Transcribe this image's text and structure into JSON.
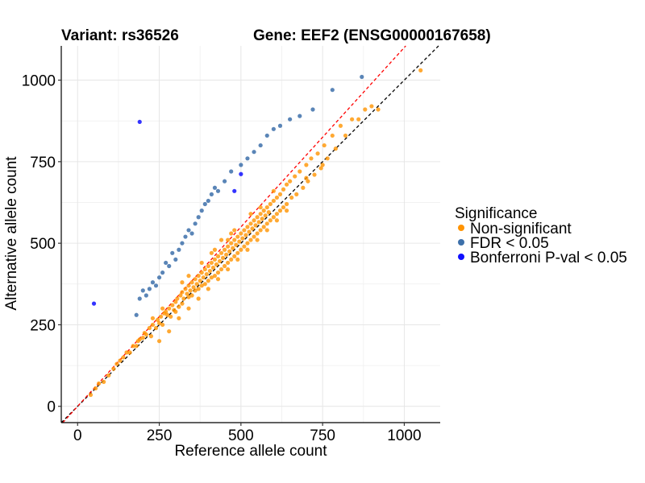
{
  "chart_data": {
    "type": "scatter",
    "title_left": "Variant: rs36526",
    "title_right": "Gene: EEF2 (ENSG00000167658)",
    "xlabel": "Reference allele count",
    "ylabel": "Alternative allele count",
    "xlim": [
      -50,
      1110
    ],
    "ylim": [
      -50,
      1105
    ],
    "x_ticks": [
      0,
      250,
      500,
      750,
      1000
    ],
    "y_ticks": [
      0,
      250,
      500,
      750,
      1000
    ],
    "x_tick_labels": [
      "0",
      "250",
      "500",
      "750",
      "1000"
    ],
    "y_tick_labels": [
      "0",
      "250",
      "500",
      "750",
      "1000"
    ],
    "grid": true,
    "legend_position": "right",
    "legend": {
      "title": "Significance",
      "items": [
        {
          "label": "Non-significant",
          "color": "#ff9300"
        },
        {
          "label": "FDR < 0.05",
          "color": "#3d70aa"
        },
        {
          "label": "Bonferroni P-val < 0.05",
          "color": "#1010ff"
        }
      ]
    },
    "reference_lines": [
      {
        "name": "identity",
        "slope": 1.0,
        "intercept": 0,
        "color": "#000000",
        "style": "dashed"
      },
      {
        "name": "fit",
        "slope": 1.1,
        "intercept": 0,
        "color": "#ff0000",
        "style": "dashed"
      }
    ],
    "series": [
      {
        "name": "Non-significant",
        "color": "#ff9300",
        "points": [
          [
            40,
            35
          ],
          [
            55,
            55
          ],
          [
            65,
            70
          ],
          [
            80,
            75
          ],
          [
            95,
            95
          ],
          [
            110,
            115
          ],
          [
            120,
            130
          ],
          [
            130,
            140
          ],
          [
            140,
            150
          ],
          [
            150,
            165
          ],
          [
            160,
            165
          ],
          [
            170,
            185
          ],
          [
            180,
            185
          ],
          [
            185,
            200
          ],
          [
            190,
            205
          ],
          [
            200,
            210
          ],
          [
            205,
            225
          ],
          [
            210,
            220
          ],
          [
            220,
            240
          ],
          [
            225,
            215
          ],
          [
            230,
            250
          ],
          [
            240,
            240
          ],
          [
            245,
            265
          ],
          [
            250,
            255
          ],
          [
            255,
            275
          ],
          [
            260,
            250
          ],
          [
            265,
            285
          ],
          [
            270,
            290
          ],
          [
            275,
            280
          ],
          [
            280,
            300
          ],
          [
            285,
            275
          ],
          [
            290,
            310
          ],
          [
            295,
            295
          ],
          [
            300,
            320
          ],
          [
            300,
            290
          ],
          [
            305,
            330
          ],
          [
            310,
            305
          ],
          [
            315,
            340
          ],
          [
            320,
            315
          ],
          [
            320,
            350
          ],
          [
            325,
            330
          ],
          [
            330,
            360
          ],
          [
            335,
            345
          ],
          [
            340,
            335
          ],
          [
            340,
            370
          ],
          [
            345,
            355
          ],
          [
            350,
            380
          ],
          [
            350,
            340
          ],
          [
            355,
            365
          ],
          [
            360,
            390
          ],
          [
            360,
            355
          ],
          [
            365,
            375
          ],
          [
            370,
            400
          ],
          [
            370,
            360
          ],
          [
            375,
            385
          ],
          [
            380,
            410
          ],
          [
            380,
            370
          ],
          [
            385,
            395
          ],
          [
            390,
            420
          ],
          [
            390,
            375
          ],
          [
            395,
            405
          ],
          [
            400,
            430
          ],
          [
            400,
            385
          ],
          [
            405,
            415
          ],
          [
            410,
            440
          ],
          [
            410,
            395
          ],
          [
            415,
            425
          ],
          [
            420,
            450
          ],
          [
            420,
            400
          ],
          [
            425,
            435
          ],
          [
            430,
            460
          ],
          [
            430,
            410
          ],
          [
            435,
            445
          ],
          [
            440,
            470
          ],
          [
            440,
            420
          ],
          [
            445,
            455
          ],
          [
            450,
            480
          ],
          [
            450,
            430
          ],
          [
            455,
            465
          ],
          [
            460,
            490
          ],
          [
            460,
            440
          ],
          [
            465,
            475
          ],
          [
            470,
            500
          ],
          [
            470,
            450
          ],
          [
            475,
            485
          ],
          [
            480,
            510
          ],
          [
            480,
            460
          ],
          [
            485,
            495
          ],
          [
            490,
            520
          ],
          [
            490,
            470
          ],
          [
            495,
            505
          ],
          [
            500,
            530
          ],
          [
            500,
            480
          ],
          [
            505,
            515
          ],
          [
            510,
            540
          ],
          [
            510,
            490
          ],
          [
            515,
            525
          ],
          [
            520,
            550
          ],
          [
            520,
            500
          ],
          [
            525,
            535
          ],
          [
            530,
            560
          ],
          [
            530,
            510
          ],
          [
            535,
            545
          ],
          [
            540,
            570
          ],
          [
            540,
            520
          ],
          [
            545,
            555
          ],
          [
            550,
            580
          ],
          [
            550,
            530
          ],
          [
            555,
            565
          ],
          [
            560,
            590
          ],
          [
            560,
            540
          ],
          [
            565,
            575
          ],
          [
            570,
            600
          ],
          [
            570,
            550
          ],
          [
            575,
            585
          ],
          [
            580,
            610
          ],
          [
            580,
            560
          ],
          [
            585,
            595
          ],
          [
            590,
            620
          ],
          [
            590,
            570
          ],
          [
            600,
            630
          ],
          [
            600,
            580
          ],
          [
            610,
            640
          ],
          [
            610,
            590
          ],
          [
            620,
            650
          ],
          [
            620,
            600
          ],
          [
            630,
            665
          ],
          [
            630,
            610
          ],
          [
            640,
            680
          ],
          [
            640,
            620
          ],
          [
            650,
            690
          ],
          [
            655,
            640
          ],
          [
            665,
            705
          ],
          [
            670,
            650
          ],
          [
            680,
            720
          ],
          [
            690,
            670
          ],
          [
            700,
            740
          ],
          [
            705,
            690
          ],
          [
            715,
            760
          ],
          [
            725,
            710
          ],
          [
            735,
            775
          ],
          [
            745,
            730
          ],
          [
            755,
            800
          ],
          [
            765,
            760
          ],
          [
            780,
            830
          ],
          [
            790,
            790
          ],
          [
            805,
            860
          ],
          [
            820,
            830
          ],
          [
            840,
            880
          ],
          [
            860,
            880
          ],
          [
            880,
            910
          ],
          [
            900,
            920
          ],
          [
            920,
            910
          ],
          [
            1050,
            1030
          ],
          [
            250,
            200
          ],
          [
            280,
            230
          ],
          [
            310,
            270
          ],
          [
            340,
            300
          ],
          [
            370,
            330
          ],
          [
            400,
            360
          ],
          [
            430,
            390
          ],
          [
            460,
            420
          ],
          [
            490,
            450
          ],
          [
            520,
            480
          ],
          [
            550,
            510
          ],
          [
            580,
            540
          ],
          [
            610,
            570
          ],
          [
            640,
            600
          ],
          [
            230,
            270
          ],
          [
            260,
            300
          ],
          [
            320,
            380
          ],
          [
            380,
            440
          ],
          [
            440,
            510
          ],
          [
            480,
            540
          ],
          [
            340,
            400
          ],
          [
            410,
            470
          ],
          [
            470,
            530
          ],
          [
            530,
            590
          ],
          [
            560,
            610
          ],
          [
            600,
            660
          ],
          [
            700,
            700
          ],
          [
            750,
            740
          ],
          [
            420,
            480
          ],
          [
            460,
            510
          ]
        ]
      },
      {
        "name": "FDR < 0.05",
        "color": "#3d70aa",
        "points": [
          [
            200,
            355
          ],
          [
            210,
            340
          ],
          [
            220,
            360
          ],
          [
            230,
            380
          ],
          [
            240,
            370
          ],
          [
            250,
            395
          ],
          [
            260,
            410
          ],
          [
            270,
            440
          ],
          [
            280,
            430
          ],
          [
            290,
            470
          ],
          [
            300,
            450
          ],
          [
            310,
            480
          ],
          [
            320,
            500
          ],
          [
            330,
            520
          ],
          [
            340,
            540
          ],
          [
            350,
            530
          ],
          [
            360,
            560
          ],
          [
            370,
            580
          ],
          [
            380,
            600
          ],
          [
            390,
            620
          ],
          [
            400,
            630
          ],
          [
            410,
            650
          ],
          [
            420,
            670
          ],
          [
            430,
            660
          ],
          [
            450,
            690
          ],
          [
            470,
            720
          ],
          [
            500,
            740
          ],
          [
            520,
            760
          ],
          [
            540,
            780
          ],
          [
            560,
            800
          ],
          [
            580,
            830
          ],
          [
            600,
            850
          ],
          [
            620,
            860
          ],
          [
            650,
            880
          ],
          [
            680,
            890
          ],
          [
            720,
            910
          ],
          [
            780,
            970
          ],
          [
            870,
            1010
          ],
          [
            180,
            280
          ],
          [
            190,
            330
          ]
        ]
      },
      {
        "name": "Bonferroni P-val < 0.05",
        "color": "#1010ff",
        "points": [
          [
            190,
            872
          ],
          [
            480,
            660
          ],
          [
            500,
            712
          ],
          [
            50,
            315
          ]
        ]
      }
    ]
  }
}
